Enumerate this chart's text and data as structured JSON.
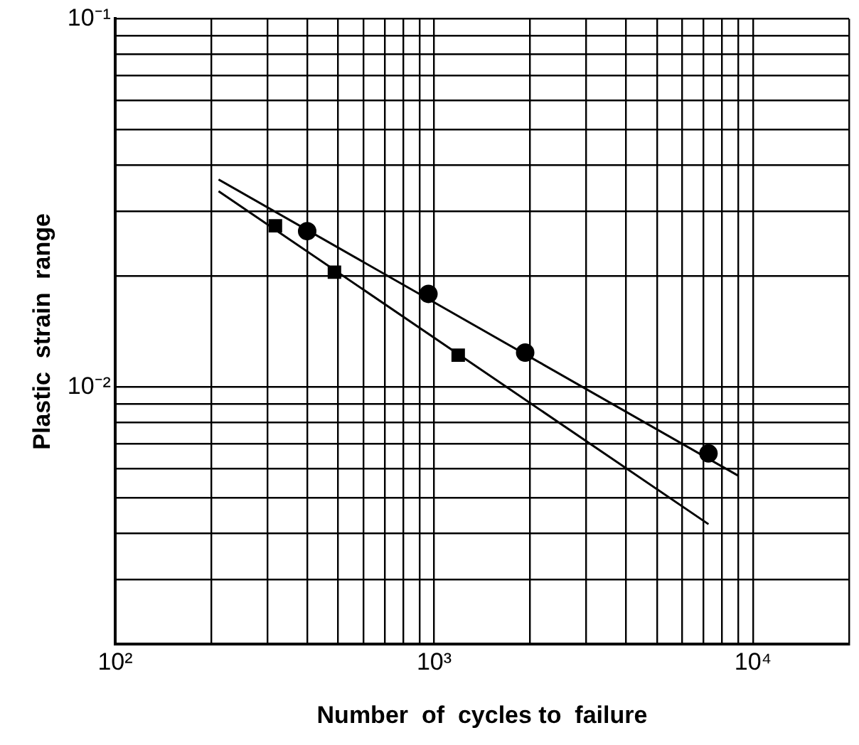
{
  "chart_data": {
    "type": "scatter",
    "xlabel": "Number  of  cycles to  failure",
    "ylabel": "Plastic  strain  range",
    "log": "xy",
    "grid": true,
    "legend": false,
    "xlim": [
      100,
      20000
    ],
    "ylim": [
      0.002,
      0.1
    ],
    "xticks": [
      {
        "value": 100,
        "label": "10²"
      },
      {
        "value": 200,
        "label": null
      },
      {
        "value": 300,
        "label": null
      },
      {
        "value": 400,
        "label": null
      },
      {
        "value": 500,
        "label": null
      },
      {
        "value": 600,
        "label": null
      },
      {
        "value": 700,
        "label": null
      },
      {
        "value": 800,
        "label": null
      },
      {
        "value": 900,
        "label": null
      },
      {
        "value": 1000,
        "label": "10³"
      },
      {
        "value": 2000,
        "label": null
      },
      {
        "value": 3000,
        "label": null
      },
      {
        "value": 4000,
        "label": null
      },
      {
        "value": 5000,
        "label": null
      },
      {
        "value": 6000,
        "label": null
      },
      {
        "value": 7000,
        "label": null
      },
      {
        "value": 8000,
        "label": null
      },
      {
        "value": 9000,
        "label": null
      },
      {
        "value": 10000,
        "label": "10⁴"
      },
      {
        "value": 20000,
        "label": null
      }
    ],
    "yticks": [
      {
        "value": 0.002,
        "label": null
      },
      {
        "value": 0.003,
        "label": null
      },
      {
        "value": 0.004,
        "label": null
      },
      {
        "value": 0.005,
        "label": null
      },
      {
        "value": 0.006,
        "label": null
      },
      {
        "value": 0.007,
        "label": null
      },
      {
        "value": 0.008,
        "label": null
      },
      {
        "value": 0.009,
        "label": null
      },
      {
        "value": 0.01,
        "label": "10⁻²"
      },
      {
        "value": 0.02,
        "label": null
      },
      {
        "value": 0.03,
        "label": null
      },
      {
        "value": 0.04,
        "label": null
      },
      {
        "value": 0.05,
        "label": null
      },
      {
        "value": 0.06,
        "label": null
      },
      {
        "value": 0.07,
        "label": null
      },
      {
        "value": 0.08,
        "label": null
      },
      {
        "value": 0.09,
        "label": null
      },
      {
        "value": 0.1,
        "label": "10⁻¹"
      }
    ],
    "series": [
      {
        "marker": "circle",
        "color": "#000000",
        "x": [
          400,
          960,
          1930,
          7250
        ],
        "values": [
          0.0265,
          0.0179,
          0.0124,
          0.0066
        ]
      },
      {
        "marker": "square",
        "color": "#000000",
        "x": [
          318,
          487,
          1190
        ],
        "values": [
          0.0274,
          0.0205,
          0.0122
        ]
      },
      {
        "type": "line",
        "marker": "none",
        "line_style": "solid",
        "color": "#000000",
        "x": [
          211,
          8960
        ],
        "values": [
          0.0366,
          0.00575
        ]
      },
      {
        "type": "line",
        "marker": "none",
        "line_style": "solid",
        "color": "#000000",
        "x": [
          211,
          7250
        ],
        "values": [
          0.034,
          0.00424
        ]
      }
    ]
  }
}
